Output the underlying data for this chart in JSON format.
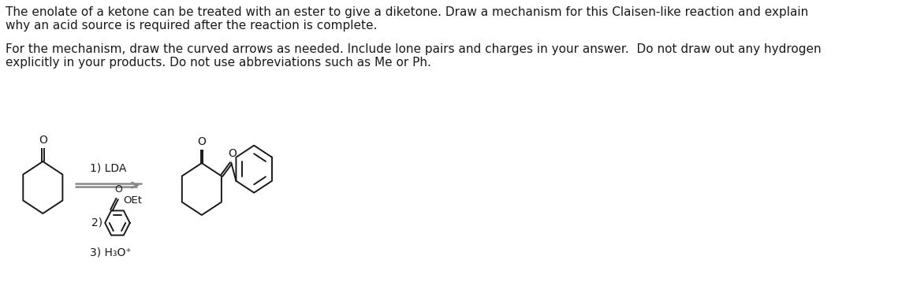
{
  "text1": "The enolate of a ketone can be treated with an ester to give a diketone. Draw a mechanism for this Claisen-like reaction and explain",
  "text2": "why an acid source is required after the reaction is complete.",
  "text3": "For the mechanism, draw the curved arrows as needed. Include lone pairs and charges in your answer.  Do not draw out any hydrogen",
  "text4": "explicitly in your products. Do not use abbreviations such as Me or Ph.",
  "label_lda": "1) LDA",
  "label_oet": "OEt",
  "label_2": "2)",
  "label_h3o": "3) H₃O⁺",
  "bg_color": "#ffffff",
  "line_color": "#1a1a1a",
  "text_color": "#1a1a1a",
  "font_size_main": 11.0,
  "arrow_color": "#888888"
}
